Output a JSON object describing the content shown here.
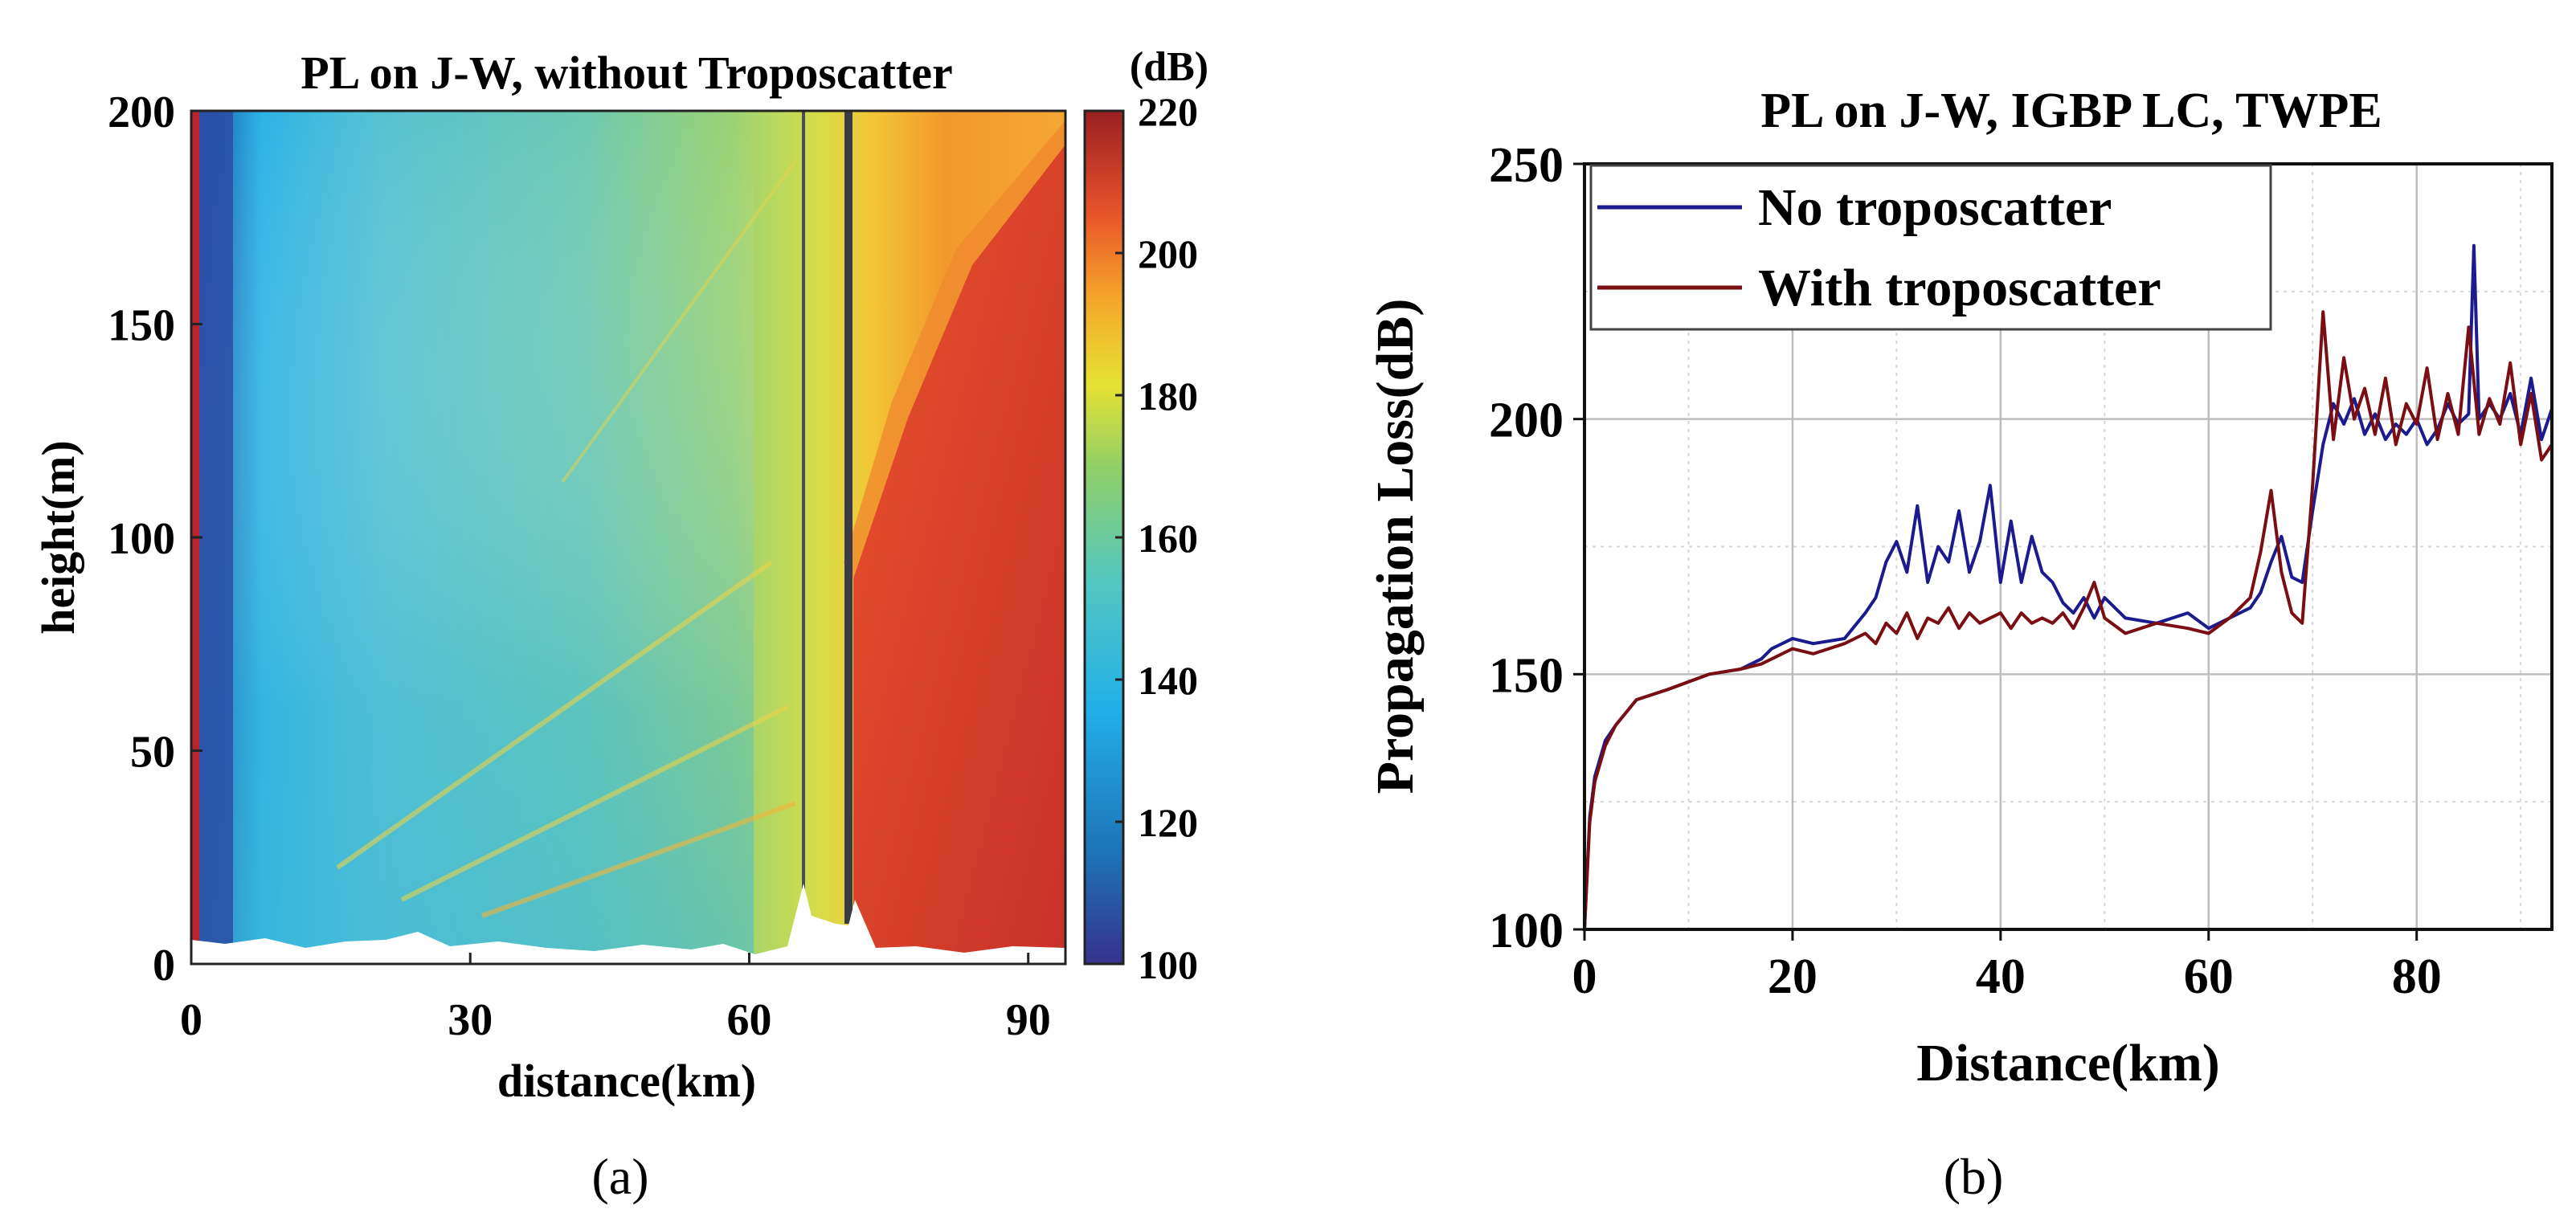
{
  "chart_data": [
    {
      "type": "heatmap",
      "title": "PL on J-W, without Troposcatter",
      "xlabel": "distance(km)",
      "ylabel": "height(m)",
      "xlim": [
        0,
        94
      ],
      "ylim": [
        0,
        200
      ],
      "xticks": [
        0,
        30,
        60,
        90
      ],
      "yticks": [
        0,
        50,
        100,
        150,
        200
      ],
      "colorbar": {
        "label": "(dB)",
        "min": 100,
        "max": 220,
        "ticks": [
          100,
          120,
          140,
          160,
          180,
          200,
          220
        ],
        "colormap": [
          "#36318c",
          "#1e6fb4",
          "#22b0e8",
          "#54c7c0",
          "#8fcf68",
          "#e6e233",
          "#f5a62a",
          "#e8532a",
          "#9a1f22"
        ]
      },
      "field_description_values": {
        "near_transmitter_dB": 110,
        "mid_range_dB": 150,
        "shadow_region_dB": 200
      },
      "caption": "(a)"
    },
    {
      "type": "line",
      "title": "PL on J-W,  IGBP LC,  TWPE",
      "xlabel": "Distance(km)",
      "ylabel": "Propagation Loss(dB)",
      "xlim": [
        0,
        93
      ],
      "ylim": [
        100,
        250
      ],
      "xticks": [
        0,
        20,
        40,
        60,
        80
      ],
      "yticks": [
        100,
        150,
        200,
        250
      ],
      "grid": true,
      "legend_position": "top-left",
      "series": [
        {
          "name": "No troposcatter",
          "color": "#1b1b8f",
          "x": [
            0,
            0.5,
            1,
            2,
            3,
            5,
            8,
            12,
            15,
            17,
            18,
            20,
            22,
            25,
            27,
            28,
            29,
            30,
            31,
            32,
            33,
            34,
            35,
            36,
            37,
            38,
            39,
            40,
            41,
            42,
            43,
            44,
            45,
            46,
            47,
            48,
            49,
            50,
            52,
            55,
            58,
            60,
            62,
            64,
            65,
            66,
            67,
            68,
            69,
            70,
            71,
            72,
            73,
            74,
            75,
            76,
            77,
            78,
            79,
            80,
            81,
            82,
            83,
            84,
            85,
            85.5,
            86,
            87,
            88,
            89,
            90,
            91,
            92,
            93
          ],
          "y": [
            100,
            122,
            130,
            137,
            140,
            145,
            147,
            150,
            151,
            153,
            155,
            157,
            156,
            157,
            162,
            165,
            172,
            176,
            170,
            183,
            168,
            175,
            172,
            182,
            170,
            176,
            187,
            168,
            180,
            168,
            177,
            170,
            168,
            164,
            162,
            165,
            161,
            165,
            161,
            160,
            162,
            159,
            161,
            163,
            166,
            172,
            177,
            169,
            168,
            182,
            195,
            203,
            199,
            204,
            197,
            201,
            196,
            199,
            197,
            200,
            195,
            198,
            203,
            199,
            201,
            234,
            200,
            203,
            200,
            205,
            197,
            208,
            196,
            202
          ]
        },
        {
          "name": "With troposcatter",
          "color": "#7a0e12",
          "x": [
            0,
            0.5,
            1,
            2,
            3,
            5,
            8,
            12,
            15,
            17,
            18,
            20,
            22,
            25,
            27,
            28,
            29,
            30,
            31,
            32,
            33,
            34,
            35,
            36,
            37,
            38,
            39,
            40,
            41,
            42,
            43,
            44,
            45,
            46,
            47,
            48,
            49,
            50,
            52,
            55,
            58,
            60,
            62,
            64,
            65,
            66,
            67,
            68,
            69,
            70,
            71,
            72,
            73,
            74,
            75,
            76,
            77,
            78,
            79,
            80,
            81,
            82,
            83,
            84,
            85,
            86,
            87,
            88,
            89,
            90,
            91,
            92,
            93
          ],
          "y": [
            100,
            121,
            129,
            136,
            140,
            145,
            147,
            150,
            151,
            152,
            153,
            155,
            154,
            156,
            158,
            156,
            160,
            158,
            162,
            157,
            161,
            160,
            163,
            159,
            162,
            160,
            161,
            162,
            159,
            162,
            160,
            161,
            160,
            162,
            159,
            163,
            168,
            161,
            158,
            160,
            159,
            158,
            161,
            165,
            174,
            186,
            170,
            162,
            160,
            187,
            221,
            196,
            212,
            200,
            206,
            197,
            208,
            195,
            203,
            199,
            210,
            196,
            205,
            197,
            218,
            197,
            204,
            199,
            211,
            195,
            205,
            192,
            195
          ]
        }
      ],
      "caption": "(b)"
    }
  ]
}
